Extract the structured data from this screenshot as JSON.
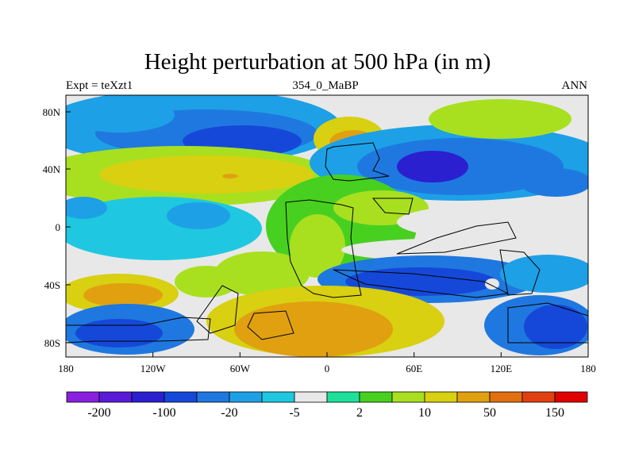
{
  "title": "Height perturbation at 500 hPa (in m)",
  "left_label": "Expt = teXzt1",
  "center_label": "354_0_MaBP",
  "right_label": "ANN",
  "x_ticks": [
    "180",
    "120W",
    "60W",
    "0",
    "60E",
    "120E",
    "180"
  ],
  "y_ticks": [
    "80N",
    "40N",
    "0",
    "40S",
    "80S"
  ],
  "colorbar": {
    "colors": [
      "#8a1fe0",
      "#5a1ad8",
      "#2a20d0",
      "#1548d8",
      "#1f78e0",
      "#1ea0e6",
      "#1fc8e0",
      "#e8e8e8",
      "#1fe09a",
      "#48d020",
      "#a8e020",
      "#d8d010",
      "#e0a010",
      "#e07010",
      "#e04010",
      "#e00000"
    ],
    "labels": [
      "-200",
      "-100",
      "-20",
      "-5",
      "2",
      "10",
      "50",
      "150"
    ]
  },
  "map_palette": {
    "deep_blue": "#2a20d0",
    "blue": "#1548d8",
    "mid_blue": "#1f78e0",
    "light_blue": "#1ea0e6",
    "cyan": "#1fc8e0",
    "gray": "#e8e8e8",
    "teal": "#1fe09a",
    "green": "#48d020",
    "yellow_green": "#a8e020",
    "yellow": "#d8d010",
    "orange": "#e0a010"
  }
}
